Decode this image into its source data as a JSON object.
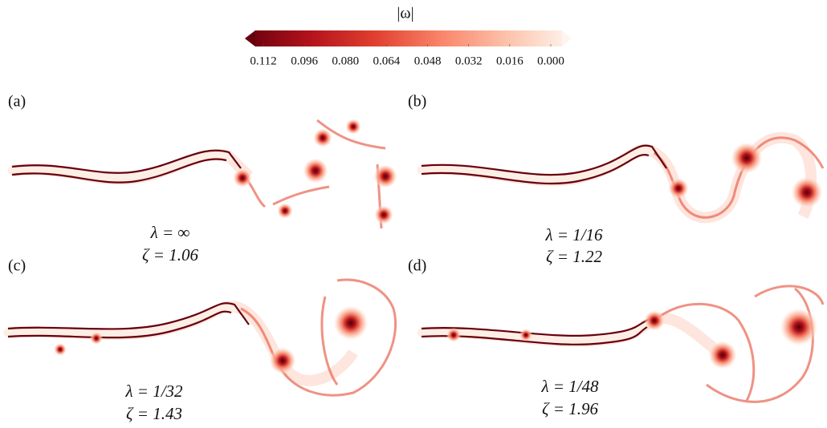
{
  "colorbar": {
    "title": "|ω|",
    "lim": [
      0.112,
      0
    ],
    "ticks": [
      0.112,
      0.096,
      {
        "value": 0.08,
        "label": "0.080"
      },
      0.064,
      0.048,
      0.032,
      0.016,
      {
        "value": 0,
        "label": "0.000"
      }
    ],
    "colors": [
      "#67000d",
      "#b3131b",
      "#e0402f",
      "#f9856a",
      "#fcc2aa",
      "#fff5f0"
    ]
  },
  "panels": [
    {
      "label": "(a)",
      "lambda": "λ = ∞",
      "zeta": "ζ = 1.06"
    },
    {
      "label": "(b)",
      "lambda": "λ = 1/16",
      "zeta": "ζ = 1.22"
    },
    {
      "label": "(c)",
      "lambda": "λ = 1/32",
      "zeta": "ζ = 1.43"
    },
    {
      "label": "(d)",
      "lambda": "λ = 1/48",
      "zeta": "ζ = 1.96"
    }
  ]
}
